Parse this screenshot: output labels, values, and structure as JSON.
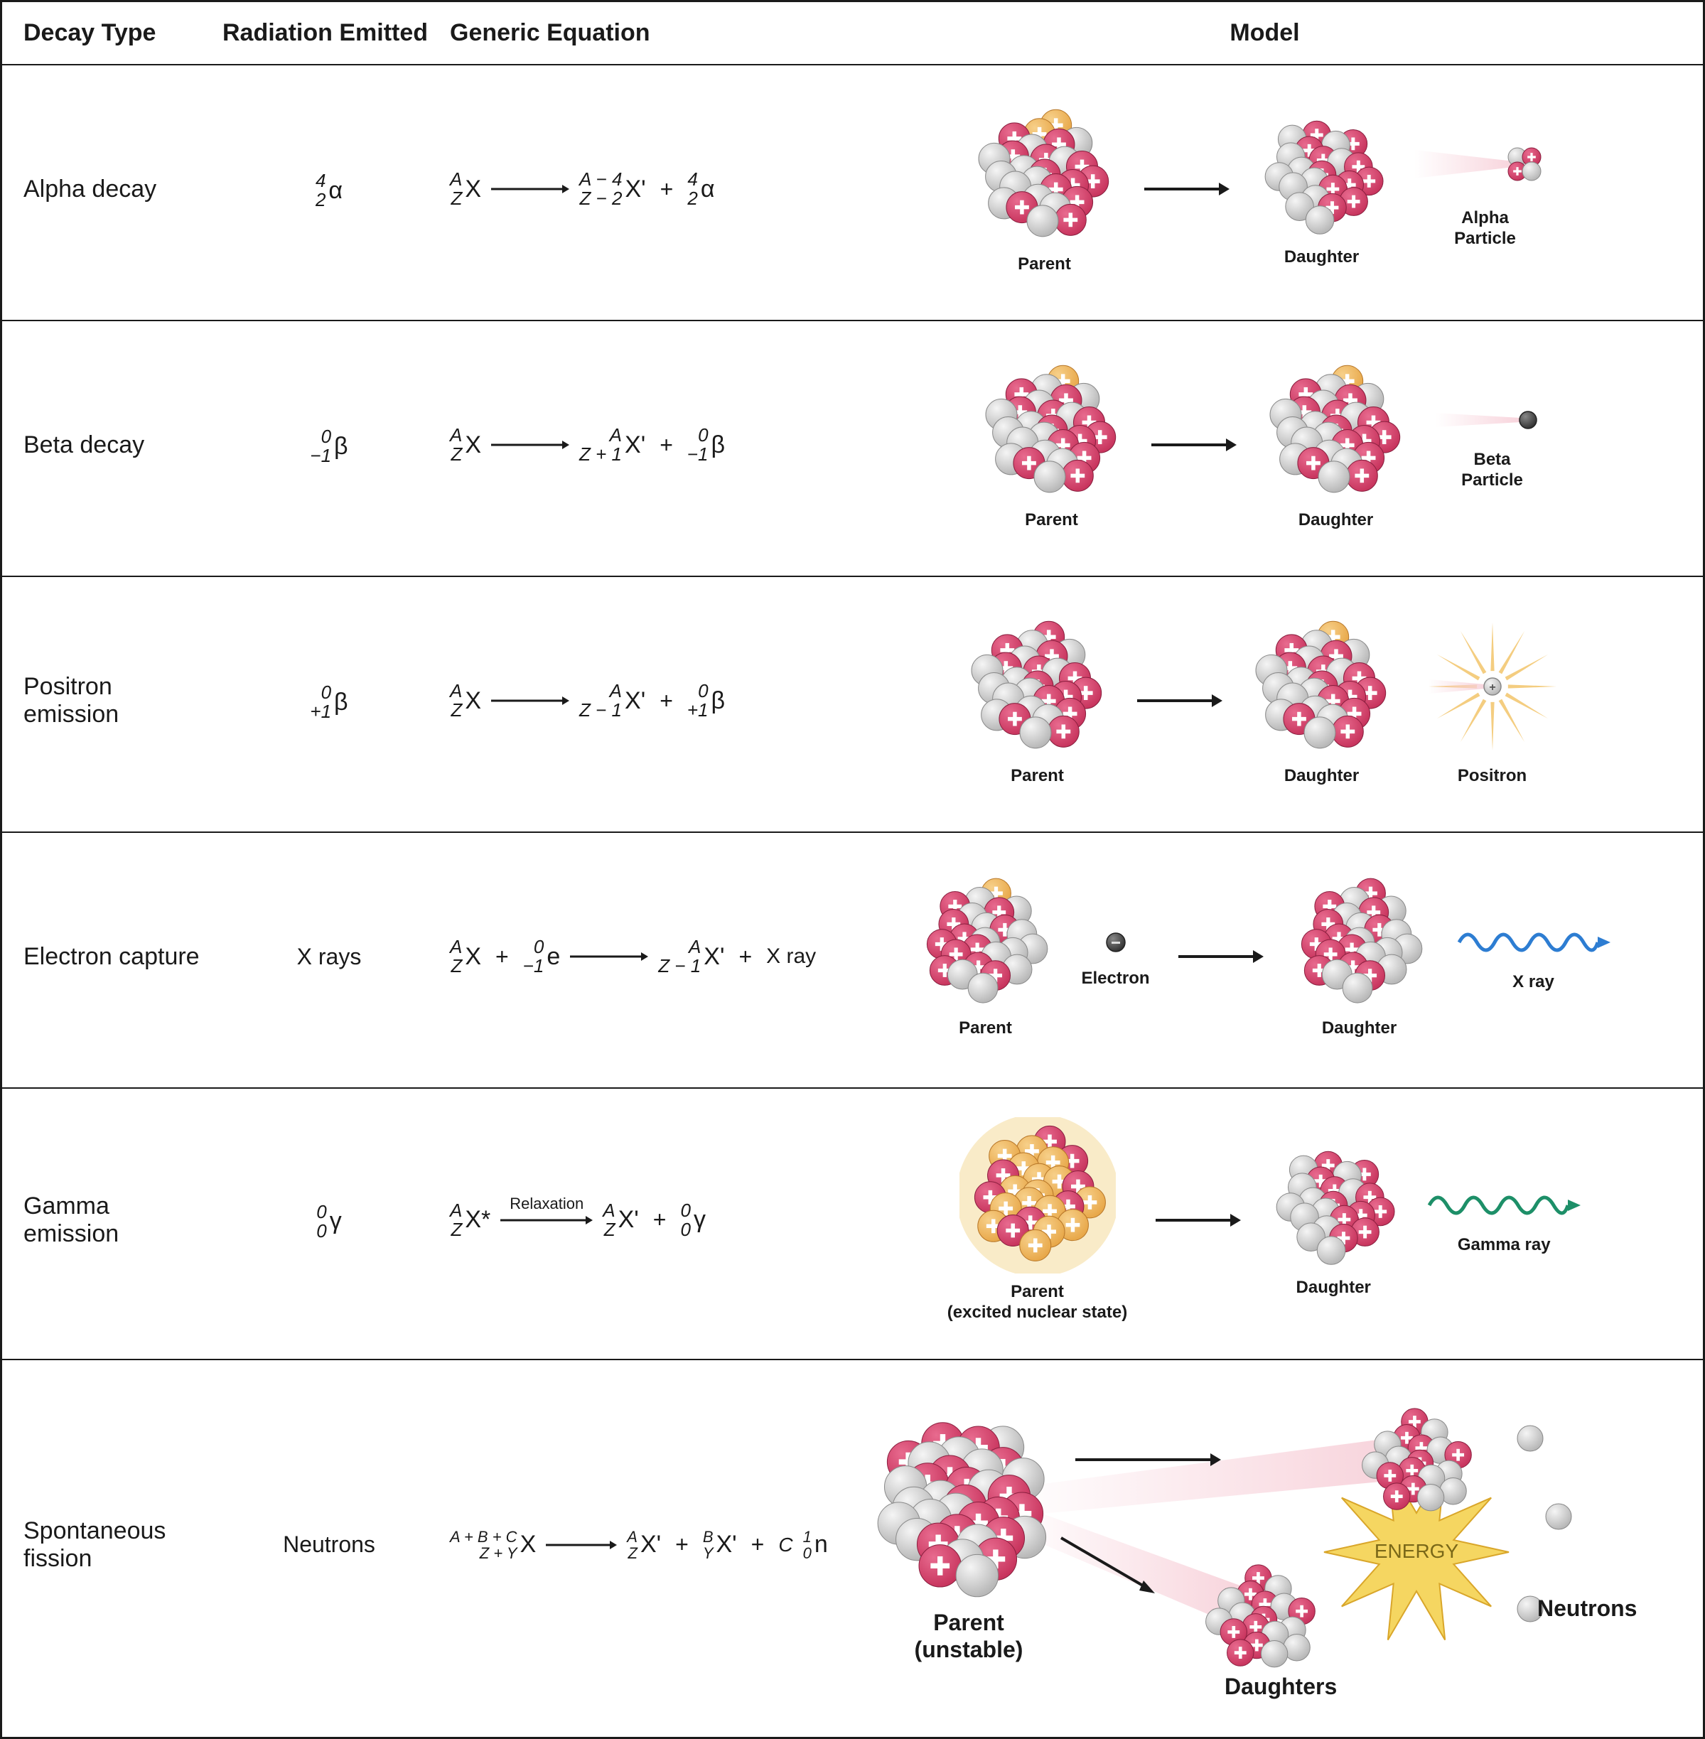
{
  "headers": {
    "col1": "Decay Type",
    "col2": "Radiation Emitted",
    "col3": "Generic Equation",
    "col4": "Model"
  },
  "colors": {
    "proton_fill": "#c8355e",
    "proton_hilite": "#e86b8f",
    "proton_stroke": "#8a1f3f",
    "neutron_fill": "#d0d0d0",
    "neutron_hilite": "#f2f2f2",
    "neutron_stroke": "#8a8a8a",
    "excited_fill": "#e8a84a",
    "excited_hilite": "#f7d08a",
    "excited_stroke": "#b8782a",
    "plus_mark": "#ffffff",
    "radiation_cone": "#f7cfd8",
    "arrow": "#1a1a1a",
    "xray_wave": "#2d7dd2",
    "gamma_wave": "#1d8f68",
    "star_fill": "#f5c84a",
    "star_stroke": "#d9a62a",
    "positron_star": "#f2c46a",
    "gamma_halo": "#f7e3b0",
    "border": "#1a1a1a",
    "text": "#1a1a1a",
    "bg": "#ffffff"
  },
  "rows": [
    {
      "name": "Alpha decay",
      "radiation_sup": "4",
      "radiation_sub": "2",
      "radiation_sym": "α",
      "eq_lhs_sup": "A",
      "eq_lhs_sub": "Z",
      "eq_lhs_sym": "X",
      "eq_rhs1_sup": "A − 4",
      "eq_rhs1_sub": "Z − 2",
      "eq_rhs1_sym": "X'",
      "eq_rhs2_sup": "4",
      "eq_rhs2_sub": "2",
      "eq_rhs2_sym": "α",
      "model_labels": {
        "parent": "Parent",
        "daughter": "Daughter",
        "particle": "Alpha\nParticle"
      }
    },
    {
      "name": "Beta decay",
      "radiation_sup": "0",
      "radiation_sub": "−1",
      "radiation_sym": "β",
      "eq_lhs_sup": "A",
      "eq_lhs_sub": "Z",
      "eq_lhs_sym": "X",
      "eq_rhs1_sup": "A",
      "eq_rhs1_sub": "Z + 1",
      "eq_rhs1_sym": "X'",
      "eq_rhs2_sup": "0",
      "eq_rhs2_sub": "−1",
      "eq_rhs2_sym": "β",
      "model_labels": {
        "parent": "Parent",
        "daughter": "Daughter",
        "particle": "Beta\nParticle"
      }
    },
    {
      "name": "Positron emission",
      "radiation_sup": "0",
      "radiation_sub": "+1",
      "radiation_sym": "β",
      "eq_lhs_sup": "A",
      "eq_lhs_sub": "Z",
      "eq_lhs_sym": "X",
      "eq_rhs1_sup": "A",
      "eq_rhs1_sub": "Z − 1",
      "eq_rhs1_sym": "X'",
      "eq_rhs2_sup": "0",
      "eq_rhs2_sub": "+1",
      "eq_rhs2_sym": "β",
      "model_labels": {
        "parent": "Parent",
        "daughter": "Daughter",
        "particle": "Positron"
      }
    },
    {
      "name": "Electron capture",
      "radiation_text": "X rays",
      "eq_lhs_sup": "A",
      "eq_lhs_sub": "Z",
      "eq_lhs_sym": "X",
      "eq_lhs2_sup": "0",
      "eq_lhs2_sub": "−1",
      "eq_lhs2_sym": "e",
      "eq_rhs1_sup": "A",
      "eq_rhs1_sub": "Z − 1",
      "eq_rhs1_sym": "X'",
      "eq_rhs_text": "X ray",
      "model_labels": {
        "parent": "Parent",
        "electron": "Electron",
        "daughter": "Daughter",
        "particle": "X ray"
      }
    },
    {
      "name": "Gamma emission",
      "radiation_sup": "0",
      "radiation_sub": "0",
      "radiation_sym": "γ",
      "eq_lhs_sup": "A",
      "eq_lhs_sub": "Z",
      "eq_lhs_sym": "X*",
      "arrow_label": "Relaxation",
      "eq_rhs1_sup": "A",
      "eq_rhs1_sub": "Z",
      "eq_rhs1_sym": "X'",
      "eq_rhs2_sup": "0",
      "eq_rhs2_sub": "0",
      "eq_rhs2_sym": "γ",
      "model_labels": {
        "parent": "Parent\n(excited nuclear state)",
        "daughter": "Daughter",
        "particle": "Gamma ray"
      }
    },
    {
      "name": "Spontaneous\nfission",
      "radiation_text": "Neutrons",
      "eq_lhs_sup": "A + B + C",
      "eq_lhs_sub": "Z + Y",
      "eq_lhs_sym": "X",
      "eq_rhs1_sup": "A",
      "eq_rhs1_sub": "Z",
      "eq_rhs1_sym": "X'",
      "eq_rhs2_sup": "B",
      "eq_rhs2_sub": "Y",
      "eq_rhs2_sym": "X'",
      "eq_rhs3_sup": "1",
      "eq_rhs3_sub": "0",
      "eq_rhs3_sym": "n",
      "eq_rhs3_coef": "C",
      "model_labels": {
        "parent": "Parent\n(unstable)",
        "daughters": "Daughters",
        "neutrons": "Neutrons",
        "energy": "ENERGY"
      }
    }
  ]
}
